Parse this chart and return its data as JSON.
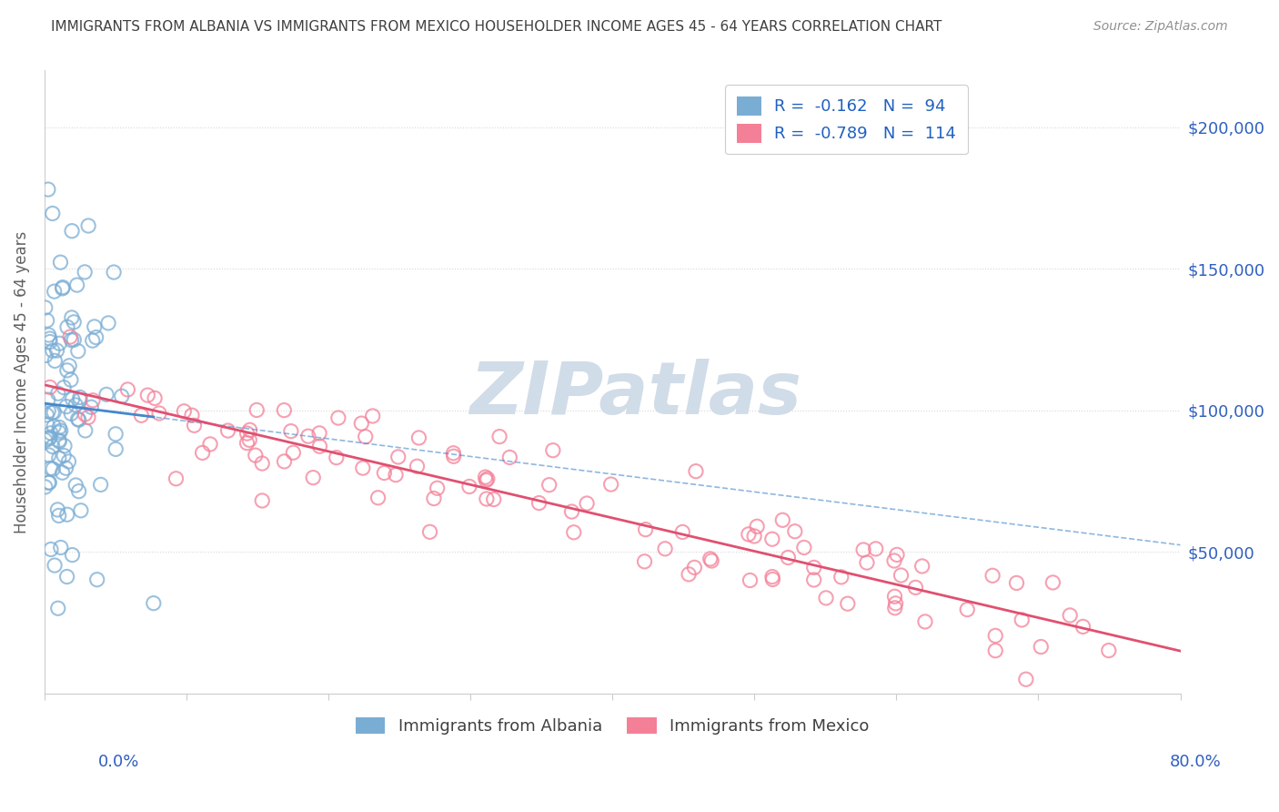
{
  "title": "IMMIGRANTS FROM ALBANIA VS IMMIGRANTS FROM MEXICO HOUSEHOLDER INCOME AGES 45 - 64 YEARS CORRELATION CHART",
  "source": "Source: ZipAtlas.com",
  "ylabel": "Householder Income Ages 45 - 64 years",
  "xlim": [
    0.0,
    80.0
  ],
  "ylim": [
    0,
    220000
  ],
  "ytick_vals": [
    0,
    50000,
    100000,
    150000,
    200000
  ],
  "ytick_labels": [
    "",
    "$50,000",
    "$100,000",
    "$150,000",
    "$200,000"
  ],
  "albania_R": -0.162,
  "albania_N": 94,
  "mexico_R": -0.789,
  "mexico_N": 114,
  "albania_color": "#7aadd4",
  "mexico_color": "#f48098",
  "albania_line_color": "#4488cc",
  "mexico_line_color": "#e05070",
  "background_color": "#ffffff",
  "title_color": "#404040",
  "source_color": "#909090",
  "ylabel_color": "#606060",
  "tick_label_color": "#3060c0",
  "legend_text_color": "#303030",
  "legend_val_color": "#2060c0",
  "watermark_color": "#d0dce8",
  "grid_color": "#cccccc",
  "spine_color": "#cccccc",
  "seed": 12345
}
